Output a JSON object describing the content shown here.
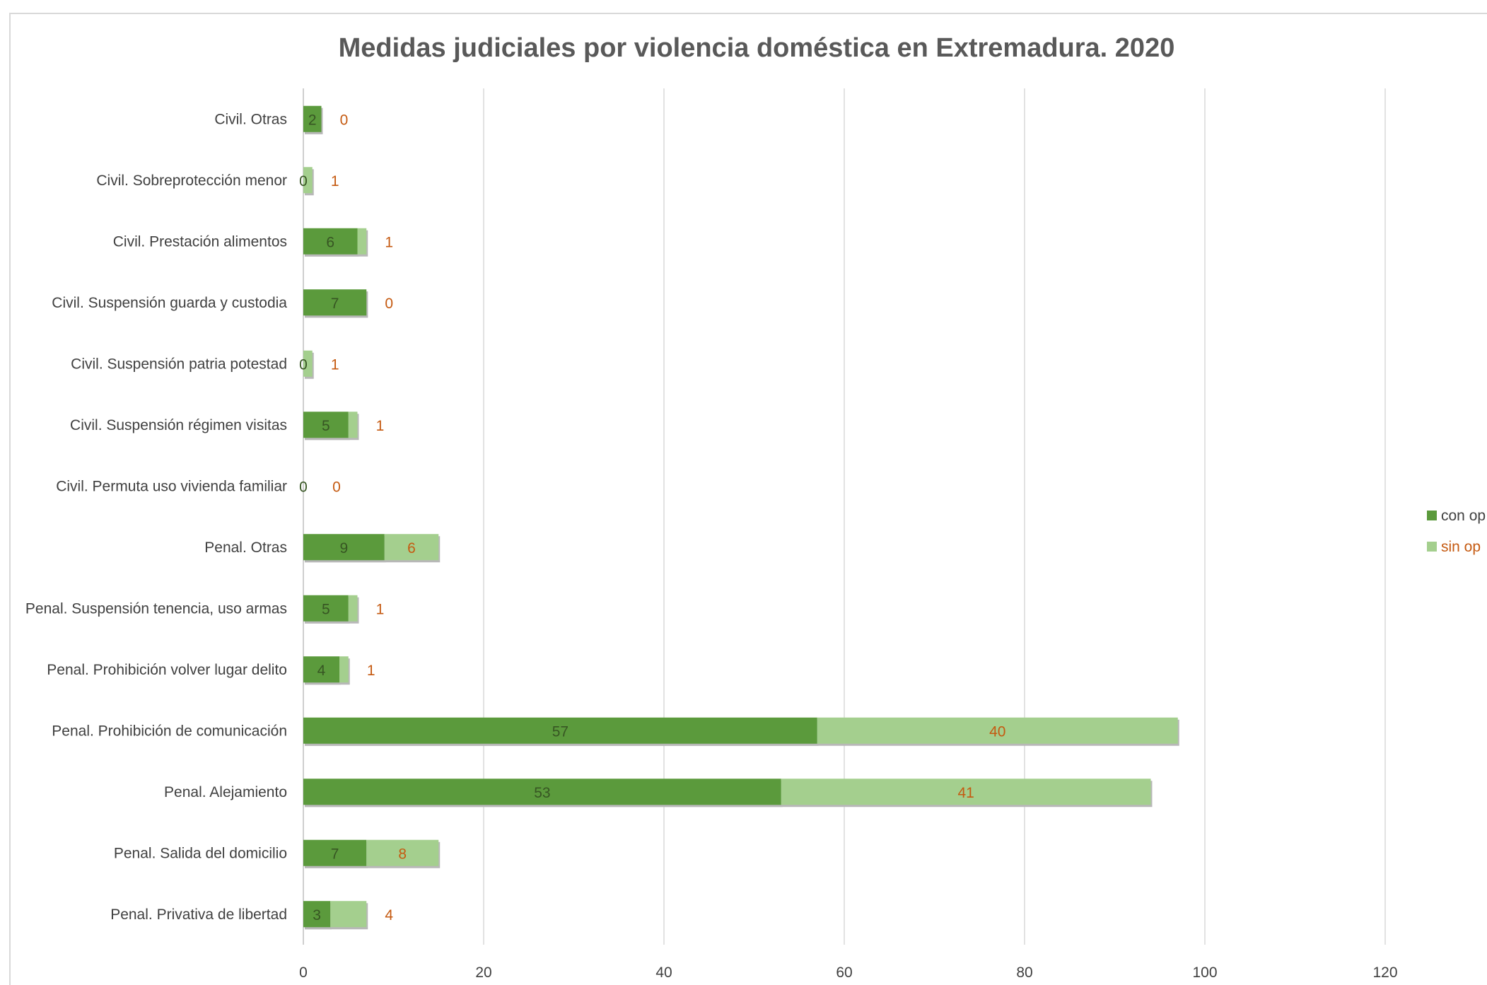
{
  "chart_data": {
    "type": "bar",
    "orientation": "horizontal",
    "stacked": true,
    "title": "Medidas judiciales por violencia doméstica en Extremadura. 2020",
    "categories": [
      "Civil. Otras",
      "Civil. Sobreprotección menor",
      "Civil. Prestación alimentos",
      "Civil. Suspensión guarda y custodia",
      "Civil. Suspensión patria potestad",
      "Civil. Suspensión régimen visitas",
      "Civil. Permuta uso vivienda familiar",
      "Penal. Otras",
      "Penal. Suspensión tenencia, uso armas",
      "Penal. Prohibición volver lugar delito",
      "Penal. Prohibición de comunicación",
      "Penal. Alejamiento",
      "Penal. Salida del domicilio",
      "Penal. Privativa de libertad"
    ],
    "series": [
      {
        "name": "con op",
        "color": "#5b9a3c",
        "values": [
          2,
          0,
          6,
          7,
          0,
          5,
          0,
          9,
          5,
          4,
          57,
          53,
          7,
          3
        ]
      },
      {
        "name": "sin op",
        "color": "#a4cf8e",
        "values": [
          0,
          1,
          1,
          0,
          1,
          1,
          0,
          6,
          1,
          1,
          40,
          41,
          8,
          4
        ]
      }
    ],
    "xlim": [
      0,
      120
    ],
    "x_ticks": [
      "0",
      "20",
      "40",
      "60",
      "80",
      "100",
      "120"
    ],
    "grid": "vertical",
    "legend_position": "right",
    "label_colors": {
      "con op": "#375623",
      "sin op": "#c55a11"
    }
  }
}
